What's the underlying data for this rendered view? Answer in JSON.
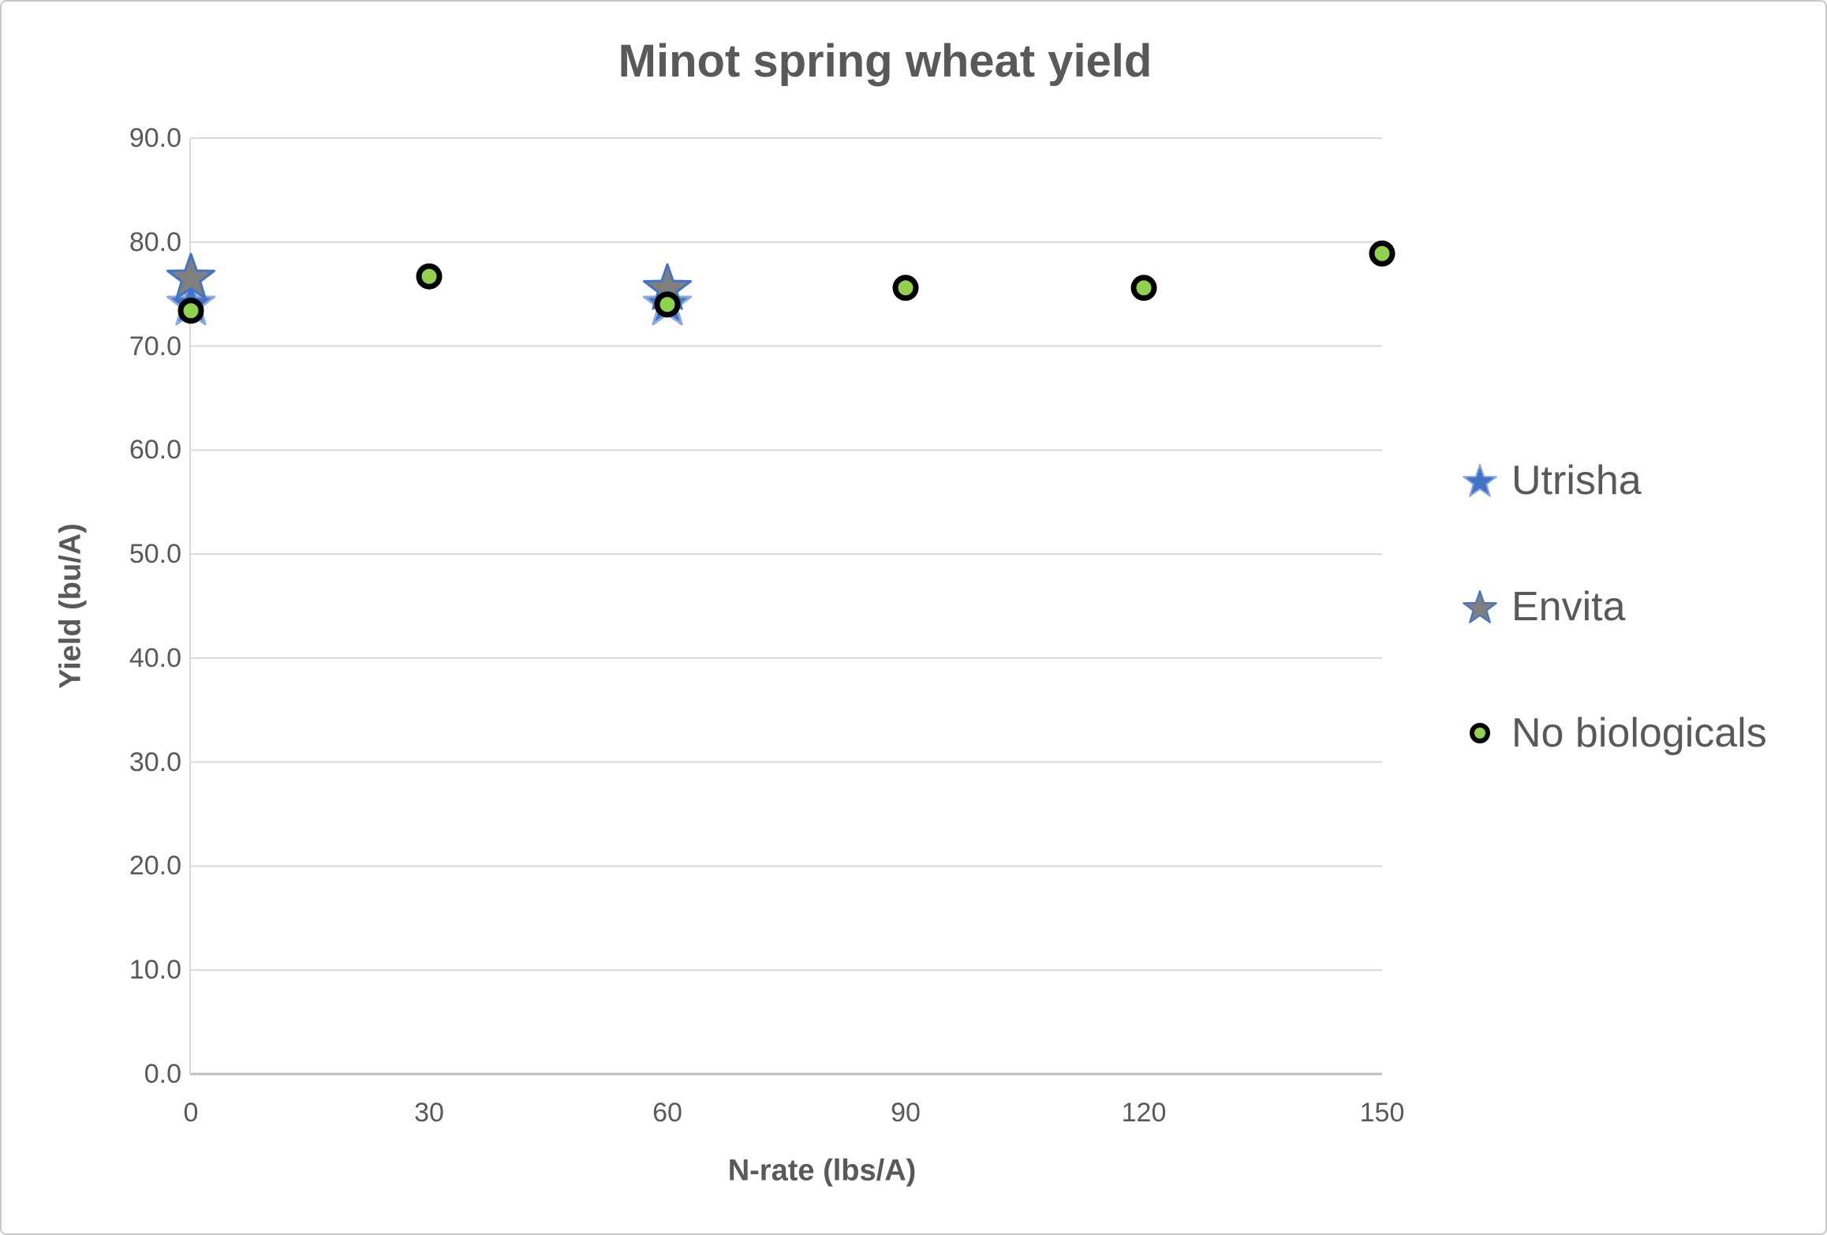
{
  "chart_data": {
    "type": "scatter",
    "title": "Minot spring wheat yield",
    "xlabel": "N-rate (lbs/A)",
    "ylabel": "Yield (bu/A)",
    "xlim": [
      0,
      150
    ],
    "ylim": [
      0,
      90
    ],
    "x_ticks": [
      "0",
      "30",
      "60",
      "90",
      "120",
      "150"
    ],
    "y_ticks": [
      "0.0",
      "10.0",
      "20.0",
      "30.0",
      "40.0",
      "50.0",
      "60.0",
      "70.0",
      "80.0",
      "90.0"
    ],
    "grid": true,
    "legend_position": "right",
    "series": [
      {
        "name": "Utrisha",
        "marker": "star",
        "fill": "#4472C4",
        "border": "#8EAADB",
        "points": [
          {
            "x": 0,
            "y": 74.0
          },
          {
            "x": 60,
            "y": 74.0
          }
        ]
      },
      {
        "name": "Envita",
        "marker": "star",
        "fill": "#7F7F7F",
        "border": "#4472C4",
        "points": [
          {
            "x": 0,
            "y": 76.5
          },
          {
            "x": 60,
            "y": 75.5
          }
        ]
      },
      {
        "name": "No biologicals",
        "marker": "circle",
        "fill": "#92D050",
        "border": "#000000",
        "points": [
          {
            "x": 0,
            "y": 73.4
          },
          {
            "x": 30,
            "y": 76.7
          },
          {
            "x": 60,
            "y": 74.0
          },
          {
            "x": 90,
            "y": 75.6
          },
          {
            "x": 120,
            "y": 75.6
          },
          {
            "x": 150,
            "y": 78.9
          }
        ]
      }
    ],
    "colors": {
      "text": "#595959",
      "gridline": "#D9D9D9",
      "axis_line": "#BFBFBF"
    }
  }
}
